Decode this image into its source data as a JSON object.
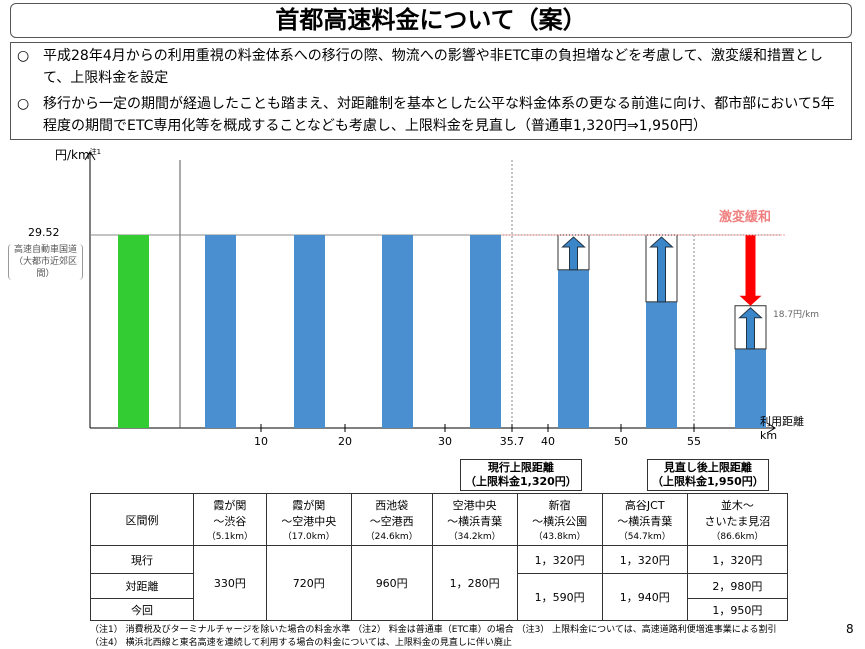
{
  "title": "首都高速料金について（案）",
  "intro": {
    "bullet_mark": "○",
    "items": [
      "平成28年4月からの利用重視の料金体系への移行の際、物流への影響や非ETC車の負担増などを考慮して、激変緩和措置として、上限料金を設定",
      "移行から一定の期間が経過したことも踏まえ、対距離制を基本とした公平な料金体系の更なる前進に向け、都市部において5年程度の期間でETC専用化等を概成することなども考慮し、上限料金を見直し（普通車1,320円⇒1,950円）"
    ]
  },
  "chart_data": {
    "type": "bar",
    "ylabel": "円/km",
    "ylabel_note": "注1",
    "y_reference": {
      "value": "29.52",
      "label": "高速自動車国道（大都市近郊区間）"
    },
    "xlabel": "利用距離",
    "xunit": "km",
    "xticks": [
      "10",
      "20",
      "30",
      "35.7",
      "40",
      "50",
      "55"
    ],
    "bars": [
      {
        "color": "#33cc33",
        "value": 29.52
      },
      {
        "color": "#4a90d0",
        "value": 29.52
      },
      {
        "color": "#4a90d0",
        "value": 29.52
      },
      {
        "color": "#4a90d0",
        "value": 29.52
      },
      {
        "color": "#4a90d0",
        "value": 29.52
      },
      {
        "color": "#4a90d0",
        "value": 24.2,
        "raised_to": 29.52
      },
      {
        "color": "#4a90d0",
        "value": 19.3,
        "raised_to": 29.52
      },
      {
        "color": "#4a90d0",
        "value": 12.1,
        "raised_to": 18.7,
        "reduced_from": 29.52
      }
    ],
    "annotation_mitigation": "激変緩和",
    "annotation_rate": "18.7円/km",
    "callout_current": [
      "現行上限距離",
      "（上限料金1,320円）"
    ],
    "callout_revised": [
      "見直し後上限距離",
      "（上限料金1,950円）"
    ]
  },
  "table": {
    "corner": "区間例",
    "columns": [
      {
        "from": "霞が関",
        "to": "～渋谷",
        "dist": "（5.1km）"
      },
      {
        "from": "霞が関",
        "to": "～空港中央",
        "dist": "（17.0km）"
      },
      {
        "from": "西池袋",
        "to": "～空港西",
        "dist": "（24.6km）"
      },
      {
        "from": "空港中央",
        "to": "～横浜青葉",
        "dist": "（34.2km）"
      },
      {
        "from": "新宿",
        "to": "～横浜公園",
        "dist": "（43.8km）"
      },
      {
        "from": "高谷JCT",
        "to": "～横浜青葉",
        "dist": "（54.7km）"
      },
      {
        "from": "並木～",
        "to": "さいたま見沼",
        "dist": "（86.6km）"
      }
    ],
    "rows": [
      "現行",
      "対距離",
      "今回"
    ],
    "merged_values": [
      "330円",
      "720円",
      "960円",
      "1，280円"
    ],
    "current": [
      "1，320円",
      "1，320円",
      "1，320円"
    ],
    "revised_merged": [
      "1，590円",
      "1，940円"
    ],
    "col7_distance": "2，980円",
    "col7_revised": "1，950円"
  },
  "footnotes": [
    "（注1） 消費税及びターミナルチャージを除いた場合の料金水準 （注2） 料金は普通車（ETC車）の場合 （注3） 上限料金については、高速道路利便増進事業による割引",
    "（注4） 横浜北西線と東名高速を連続して利用する場合の料金については、上限料金の見直しに伴い廃止"
  ],
  "page_number": "8"
}
